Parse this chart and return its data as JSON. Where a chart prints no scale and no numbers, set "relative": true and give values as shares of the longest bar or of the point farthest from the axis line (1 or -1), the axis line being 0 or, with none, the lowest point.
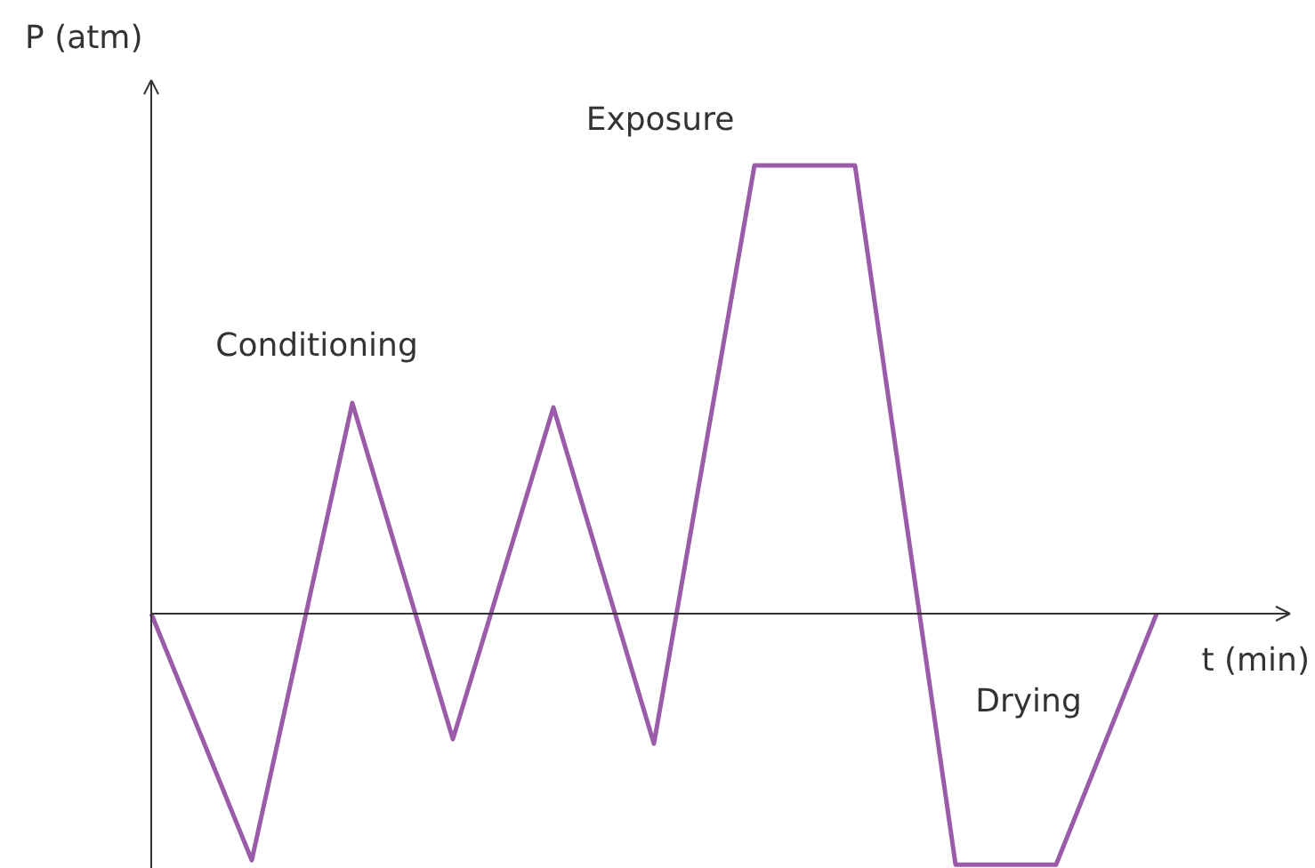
{
  "chart_data": {
    "type": "line",
    "relative": true,
    "xlabel": "t (min)",
    "ylabel": "P (atm)",
    "categories": [
      null,
      null,
      null,
      null,
      null,
      null,
      null,
      null,
      null,
      null,
      null
    ],
    "series": [
      {
        "color": "#9a5ca8",
        "values": [
          0,
          -0.55,
          0.47,
          -0.28,
          0.46,
          -0.29,
          1,
          1,
          -0.56,
          -0.56,
          0
        ]
      }
    ],
    "annotations": [
      "Conditioning",
      "Exposure",
      "Drying"
    ]
  }
}
